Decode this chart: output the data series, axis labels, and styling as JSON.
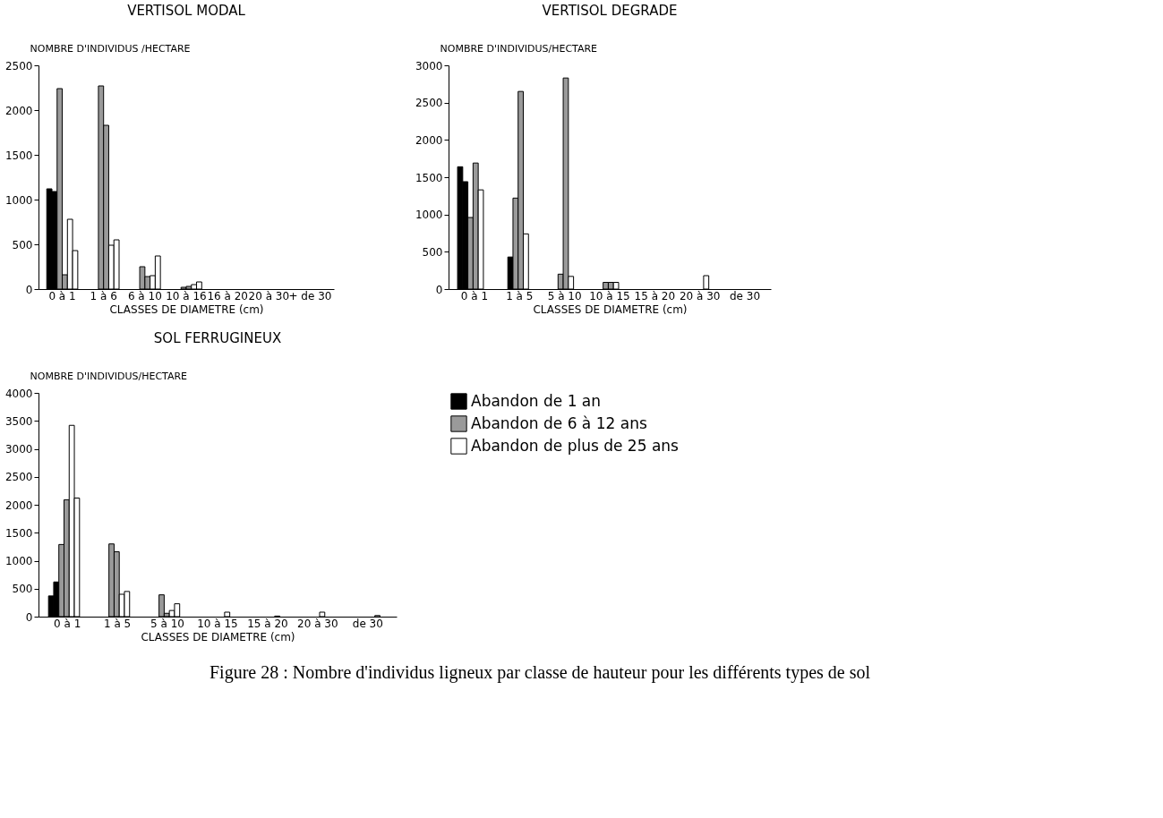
{
  "chart_data": [
    {
      "type": "bar",
      "title": "VERTISOL MODAL",
      "xlabel": "CLASSES DE DIAMETRE (cm)",
      "ylabel": "NOMBRE D'INDIVIDUS /HECTARE",
      "categories": [
        "0 à 1",
        "1 à 6",
        "6 à 10",
        "10 à 16",
        "16 à 20",
        "20 à 30",
        "+ de 30"
      ],
      "ylim": [
        0,
        2500
      ],
      "yticks": [
        0,
        500,
        1000,
        1500,
        2000,
        2500
      ],
      "grid": false,
      "legend": false,
      "series": [
        {
          "color": "#000000",
          "values": [
            1120,
            null,
            null,
            null,
            null,
            null,
            null
          ]
        },
        {
          "color": "#000000",
          "values": [
            1090,
            null,
            null,
            null,
            null,
            null,
            null
          ]
        },
        {
          "color": "#9a9a9a",
          "values": [
            2240,
            2270,
            250,
            20,
            null,
            null,
            null
          ]
        },
        {
          "color": "#9a9a9a",
          "values": [
            160,
            1830,
            140,
            30,
            null,
            null,
            null
          ]
        },
        {
          "color": "#ffffff",
          "values": [
            780,
            490,
            150,
            50,
            null,
            null,
            null
          ]
        },
        {
          "color": "#ffffff",
          "values": [
            430,
            550,
            370,
            80,
            null,
            null,
            null
          ]
        }
      ]
    },
    {
      "type": "bar",
      "title": "VERTISOL DEGRADE",
      "xlabel": "CLASSES DE DIAMETRE (cm)",
      "ylabel": "NOMBRE D'INDIVIDUS/HECTARE",
      "categories": [
        "0 à 1",
        "1 à 5",
        "5 à 10",
        "10 à 15",
        "15 à 20",
        "20 à 30",
        "de 30"
      ],
      "ylim": [
        0,
        3000
      ],
      "yticks": [
        0,
        500,
        1000,
        1500,
        2000,
        2500,
        3000
      ],
      "grid": false,
      "legend": false,
      "series": [
        {
          "color": "#000000",
          "values": [
            1640,
            null,
            null,
            null,
            null,
            null,
            null
          ]
        },
        {
          "color": "#000000",
          "values": [
            1440,
            430,
            null,
            null,
            null,
            null,
            null
          ]
        },
        {
          "color": "#9a9a9a",
          "values": [
            960,
            1220,
            200,
            90,
            null,
            null,
            null
          ]
        },
        {
          "color": "#9a9a9a",
          "values": [
            1690,
            2650,
            2830,
            90,
            null,
            null,
            null
          ]
        },
        {
          "color": "#ffffff",
          "values": [
            1330,
            740,
            170,
            90,
            null,
            180,
            null
          ]
        },
        {
          "color": "#ffffff",
          "values": [
            null,
            null,
            null,
            null,
            null,
            null,
            null
          ]
        }
      ]
    },
    {
      "type": "bar",
      "title": "SOL FERRUGINEUX",
      "xlabel": "CLASSES DE DIAMETRE (cm)",
      "ylabel": "NOMBRE D'INDIVIDUS/HECTARE",
      "categories": [
        "0 à 1",
        "1 à 5",
        "5 à 10",
        "10 à 15",
        "15 à 20",
        "20 à 30",
        "de 30"
      ],
      "ylim": [
        0,
        4000
      ],
      "yticks": [
        0,
        500,
        1000,
        1500,
        2000,
        2500,
        3000,
        3500,
        4000
      ],
      "grid": false,
      "legend": "right",
      "annotations": [
        "Figure 28 : Nombre d'individus ligneux par classe de hauteur pour les différents types de sol"
      ],
      "series": [
        {
          "name": "Abandon de 1 an",
          "color": "#000000",
          "values": [
            370,
            null,
            null,
            null,
            null,
            null,
            null
          ]
        },
        {
          "color": "#000000",
          "values": [
            620,
            null,
            null,
            null,
            null,
            null,
            null
          ]
        },
        {
          "name": "Abandon de 6 à 12 ans",
          "color": "#9a9a9a",
          "values": [
            1290,
            1300,
            390,
            null,
            null,
            null,
            null
          ]
        },
        {
          "color": "#9a9a9a",
          "values": [
            2090,
            1160,
            60,
            null,
            null,
            null,
            null
          ]
        },
        {
          "name": "Abandon de plus de 25 ans",
          "color": "#ffffff",
          "values": [
            3420,
            400,
            110,
            null,
            null,
            80,
            null
          ]
        },
        {
          "color": "#ffffff",
          "values": [
            2120,
            450,
            230,
            80,
            10,
            null,
            20
          ]
        }
      ]
    }
  ]
}
